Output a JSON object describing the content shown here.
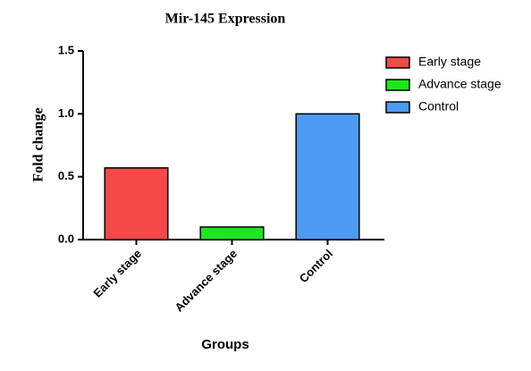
{
  "chart_data": {
    "type": "bar",
    "title": "Mir-145 Expression",
    "x_label": "Groups",
    "y_label": "Fold change",
    "categories": [
      "Early stage",
      "Advance stage",
      "Control"
    ],
    "values": [
      0.57,
      0.1,
      1.0
    ],
    "colors": [
      "#f54848",
      "#1ee61e",
      "#4d9af2"
    ],
    "ylim": [
      0,
      1.5
    ],
    "yticks": [
      {
        "value": 0,
        "label": "0.0"
      },
      0.5,
      {
        "value": 1,
        "label": "1.0"
      },
      {
        "value": 1.5,
        "label": "1.5"
      }
    ],
    "legend": "right"
  }
}
